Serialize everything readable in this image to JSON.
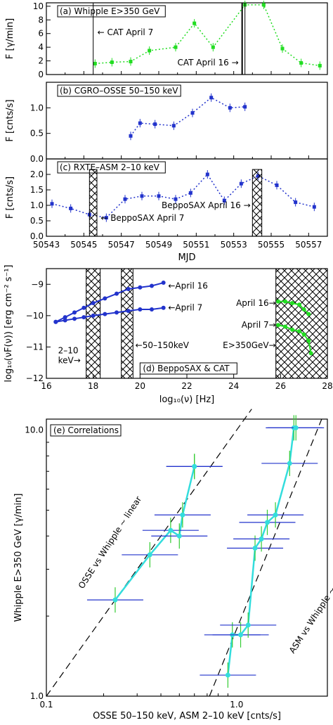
{
  "chart_data": [
    {
      "panel": "a",
      "type": "line",
      "title": "(a) Whipple E>350 GeV",
      "ylabel": "F [γ/min]",
      "xlim": [
        50543,
        50558
      ],
      "ylim": [
        0,
        10
      ],
      "yticks": [
        "0",
        "2",
        "4",
        "6",
        "8",
        "10"
      ],
      "series": [
        {
          "color": "#22dd22",
          "x": [
            50545.6,
            50546.5,
            50547.5,
            50548.5,
            50549.9,
            50550.9,
            50551.9,
            50553.6,
            50554.6,
            50555.6,
            50556.6,
            50557.6
          ],
          "y": [
            1.6,
            1.8,
            1.9,
            3.5,
            4.0,
            7.5,
            4.0,
            10.2,
            10.2,
            3.8,
            1.7,
            1.3
          ]
        }
      ],
      "annotations": [
        "← CAT April 7",
        "CAT April 16 →"
      ]
    },
    {
      "panel": "b",
      "type": "line",
      "title": "(b) CGRO–OSSE 50–150 keV",
      "ylabel": "F [cnts/s]",
      "ylim": [
        0.0,
        1.5
      ],
      "yticks": [
        "0.0",
        "0.5",
        "1.0"
      ],
      "series": [
        {
          "color": "#2233cc",
          "x": [
            50547.5,
            50548.0,
            50548.8,
            50549.8,
            50550.8,
            50551.8,
            50552.8,
            50553.6
          ],
          "y": [
            0.45,
            0.7,
            0.68,
            0.65,
            0.9,
            1.2,
            1.0,
            1.02
          ]
        }
      ]
    },
    {
      "panel": "c",
      "type": "line",
      "title": "(c) RXTE–ASM 2–10 keV",
      "ylabel": "F [cnts/s]",
      "xlabel": "MJD",
      "ylim": [
        0.0,
        2.5
      ],
      "yticks": [
        "0.0",
        "0.5",
        "1.0",
        "1.5",
        "2.0"
      ],
      "xticks": [
        "50543",
        "50545",
        "50547",
        "50549",
        "50551",
        "50553",
        "50555",
        "50557"
      ],
      "series": [
        {
          "color": "#2233cc",
          "x": [
            50543.3,
            50544.3,
            50545.3,
            50546.2,
            50547.2,
            50548.1,
            50549.0,
            50549.9,
            50550.7,
            50551.6,
            50552.5,
            50553.4,
            50554.3,
            50555.3,
            50556.3,
            50557.3
          ],
          "y": [
            1.05,
            0.9,
            0.7,
            0.6,
            1.2,
            1.3,
            1.3,
            1.2,
            1.4,
            2.0,
            1.15,
            1.7,
            1.95,
            1.65,
            1.1,
            0.95
          ]
        }
      ],
      "annotations": [
        "BeppoSAX April 16 →",
        "← BeppoSAX April 7"
      ]
    },
    {
      "panel": "d",
      "type": "scatter",
      "title": "(d) BeppoSAX & CAT",
      "xlabel": "log₁₀(ν) [Hz]",
      "ylabel": "log₁₀(νF(ν)) [erg cm⁻² s⁻¹]",
      "xlim": [
        16,
        28
      ],
      "ylim": [
        -12,
        -8.5
      ],
      "xticks": [
        "16",
        "18",
        "20",
        "22",
        "24",
        "26",
        "28"
      ],
      "yticks": [
        "−12",
        "−11",
        "−10",
        "−9"
      ],
      "annotations": [
        "←April 16",
        "←April 7",
        "←50–150keV",
        "2–10 keV→",
        "April 16→",
        "April 7→",
        "E>350GeV→"
      ],
      "series": [
        {
          "name": "April 16",
          "color": "#2233cc",
          "x": [
            16.4,
            16.8,
            17.2,
            17.6,
            18.0,
            18.5,
            19.0,
            19.5,
            20.0,
            20.5,
            21.0
          ],
          "y": [
            -10.2,
            -10.05,
            -9.9,
            -9.75,
            -9.6,
            -9.45,
            -9.3,
            -9.15,
            -9.1,
            -9.05,
            -8.95
          ]
        },
        {
          "name": "April 7",
          "color": "#2233cc",
          "x": [
            16.4,
            16.8,
            17.2,
            17.6,
            18.0,
            18.5,
            19.0,
            19.5,
            20.0,
            20.5,
            21.0
          ],
          "y": [
            -10.2,
            -10.15,
            -10.1,
            -10.05,
            -10.0,
            -9.95,
            -9.9,
            -9.85,
            -9.8,
            -9.8,
            -9.75
          ]
        },
        {
          "name": "April 16",
          "color": "#22dd22",
          "x": [
            25.9,
            26.2,
            26.5,
            26.8,
            27.0,
            27.2
          ],
          "y": [
            -9.55,
            -9.55,
            -9.6,
            -9.65,
            -9.8,
            -9.95
          ]
        },
        {
          "name": "April 7",
          "color": "#22dd22",
          "x": [
            25.9,
            26.2,
            26.5,
            26.8,
            27.0,
            27.2,
            27.3
          ],
          "y": [
            -10.3,
            -10.35,
            -10.45,
            -10.5,
            -10.6,
            -10.8,
            -11.2
          ]
        }
      ]
    },
    {
      "panel": "e",
      "type": "scatter",
      "title": "(e) Correlations",
      "xlabel": "OSSE 50–150 keV, ASM 2–10 keV [cnts/s]",
      "ylabel": "Whipple E>350 GeV [γ/min]",
      "xscale": "log",
      "yscale": "log",
      "xlim": [
        0.1,
        3.0
      ],
      "ylim": [
        1.0,
        11.0
      ],
      "xticks": [
        "0.1",
        "1.0"
      ],
      "yticks": [
        "1.0",
        "10.0"
      ],
      "annotations": [
        "OSSE vs Whipple ~ linear",
        "ASM vs Whipple ~ quadratic"
      ],
      "series": [
        {
          "name": "OSSE",
          "color": "#33dddd",
          "x": [
            0.23,
            0.35,
            0.45,
            0.5,
            0.52,
            0.6,
            0.6
          ],
          "y": [
            2.3,
            3.4,
            4.2,
            4.0,
            4.8,
            7.3,
            7.3
          ]
        },
        {
          "name": "ASM",
          "color": "#33dddd",
          "x": [
            0.9,
            0.95,
            1.05,
            1.15,
            1.25,
            1.35,
            1.45,
            1.6,
            1.9,
            2.0,
            2.05
          ],
          "y": [
            1.2,
            1.7,
            1.7,
            1.85,
            3.6,
            3.9,
            4.5,
            4.8,
            7.5,
            10.2,
            10.2
          ]
        }
      ]
    }
  ]
}
